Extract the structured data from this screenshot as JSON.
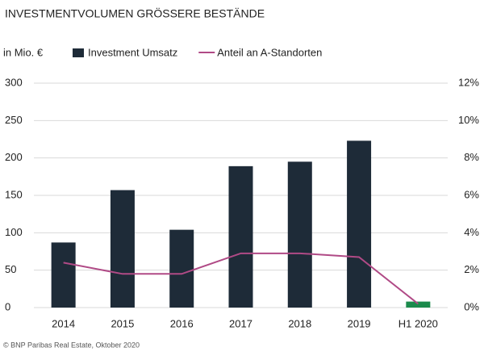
{
  "chart_data": {
    "type": "bar_line",
    "title": "INVESTMENTVOLUMEN GRÖSSERE BESTÄNDE",
    "y_label": "in Mio. €",
    "source": "© BNP Paribas Real Estate, Oktober 2020",
    "categories": [
      "2014",
      "2015",
      "2016",
      "2017",
      "2018",
      "2019",
      "H1 2020"
    ],
    "series": [
      {
        "name": "Investment Umsatz",
        "type": "bar",
        "color": "#1e2b38",
        "colors": [
          "#1e2b38",
          "#1e2b38",
          "#1e2b38",
          "#1e2b38",
          "#1e2b38",
          "#1e2b38",
          "#1b8a4c"
        ],
        "values": [
          87,
          157,
          104,
          189,
          195,
          223,
          8
        ]
      },
      {
        "name": "Anteil an A-Standorten",
        "type": "line",
        "axis": "y2",
        "color": "#b04a86",
        "values": [
          2.4,
          1.8,
          1.8,
          2.9,
          2.9,
          2.7,
          0.2
        ]
      }
    ],
    "ylim": [
      0,
      300
    ],
    "yticks": [
      0,
      50,
      100,
      150,
      200,
      250,
      300
    ],
    "y2lim": [
      0,
      12
    ],
    "y2ticks": [
      {
        "value": 0,
        "label": "0%"
      },
      {
        "value": 2,
        "label": "2%"
      },
      {
        "value": 4,
        "label": "4%"
      },
      {
        "value": 6,
        "label": "6%"
      },
      {
        "value": 8,
        "label": "8%"
      },
      {
        "value": 10,
        "label": "10%"
      },
      {
        "value": 12,
        "label": "12%"
      }
    ],
    "grid": true
  }
}
